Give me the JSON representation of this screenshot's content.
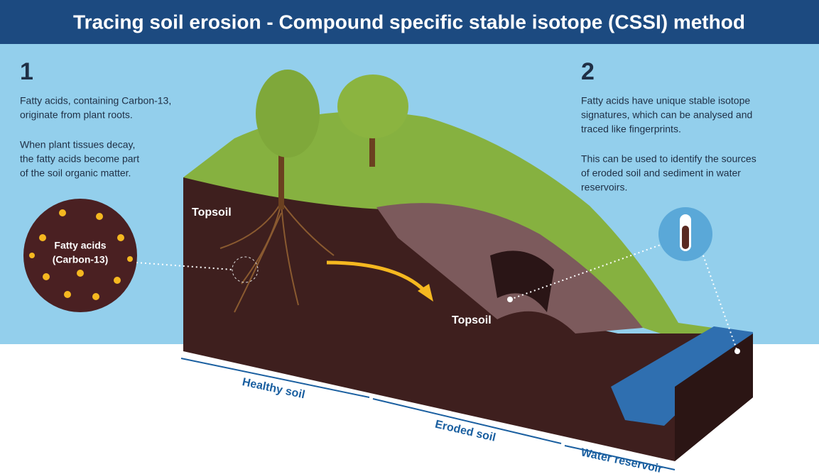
{
  "header": {
    "title": "Tracing soil erosion - Compound specific stable isotope (CSSI) method"
  },
  "steps": [
    {
      "number": "1",
      "paragraphs": [
        [
          "Fatty acids, containing Carbon-13,",
          "originate from plant roots."
        ],
        [
          "When plant tissues decay,",
          "the fatty acids become part",
          "of the soil organic matter."
        ]
      ]
    },
    {
      "number": "2",
      "paragraphs": [
        [
          "Fatty acids have unique stable isotope",
          "signatures, which can be analysed and",
          "traced like fingerprints."
        ],
        [
          "This can be used to identify the sources",
          "of eroded soil and sediment in water",
          "reservoirs."
        ]
      ]
    }
  ],
  "callout": {
    "lines": [
      "Fatty acids",
      "(Carbon-13)"
    ]
  },
  "soil_labels": [
    "Topsoil",
    "Topsoil"
  ],
  "sections": [
    "Healthy soil",
    "Eroded soil",
    "Water reservoir"
  ]
}
